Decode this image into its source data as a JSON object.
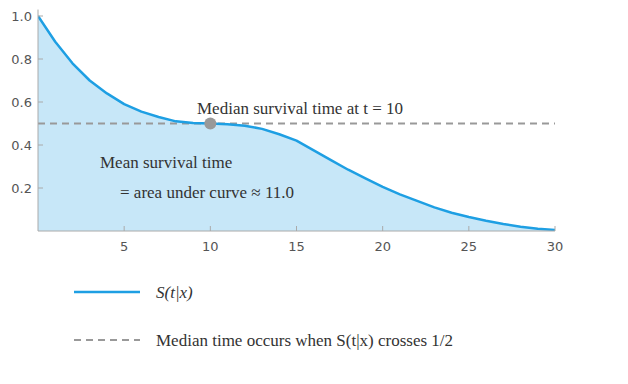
{
  "chart_data": {
    "type": "area",
    "x": [
      0,
      1,
      2,
      3,
      4,
      5,
      6,
      7,
      8,
      9,
      10,
      11,
      12,
      13,
      14,
      15,
      16,
      17,
      18,
      19,
      20,
      21,
      22,
      23,
      24,
      25,
      26,
      27,
      28,
      29,
      30
    ],
    "series": [
      {
        "name": "S(t|x)",
        "color": "#1e9fe3",
        "values": [
          1.0,
          0.88,
          0.78,
          0.7,
          0.64,
          0.59,
          0.555,
          0.53,
          0.51,
          0.502,
          0.5,
          0.497,
          0.49,
          0.475,
          0.45,
          0.42,
          0.375,
          0.33,
          0.285,
          0.245,
          0.205,
          0.17,
          0.14,
          0.11,
          0.085,
          0.065,
          0.048,
          0.033,
          0.02,
          0.01,
          0.005
        ]
      }
    ],
    "xlim": [
      0,
      30
    ],
    "ylim": [
      0,
      1.03
    ],
    "xticks": [
      5,
      10,
      15,
      20,
      25,
      30
    ],
    "yticks": [
      0.2,
      0.4,
      0.6,
      0.8,
      {
        "value": 1.0,
        "label": "1.0"
      }
    ],
    "reference_line": {
      "y": 0.5,
      "name": "Median time occurs when S(t|x) crosses 1/2",
      "color": "#999999",
      "line_style": "dashed"
    },
    "median_point": {
      "x": 10,
      "y": 0.5,
      "color": "#999999"
    },
    "annotations": [
      "Median survival time at t = 10",
      "Mean survival time",
      "= area under curve ≈ 11.0"
    ],
    "grid": false
  }
}
